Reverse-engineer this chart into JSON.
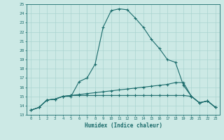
{
  "xlabel": "Humidex (Indice chaleur)",
  "bg_color": "#cce9e5",
  "line_color": "#1a6b6b",
  "grid_color": "#aad4d0",
  "xlim": [
    -0.5,
    23.5
  ],
  "ylim": [
    13,
    25
  ],
  "xticks": [
    0,
    1,
    2,
    3,
    4,
    5,
    6,
    7,
    8,
    9,
    10,
    11,
    12,
    13,
    14,
    15,
    16,
    17,
    18,
    19,
    20,
    21,
    22,
    23
  ],
  "yticks": [
    13,
    14,
    15,
    16,
    17,
    18,
    19,
    20,
    21,
    22,
    23,
    24,
    25
  ],
  "curve1_x": [
    0,
    1,
    2,
    3,
    4,
    5,
    6,
    7,
    8,
    9,
    10,
    11,
    12,
    13,
    14,
    15,
    16,
    17,
    18,
    19,
    20,
    21,
    22,
    23
  ],
  "curve1_y": [
    13.5,
    13.8,
    14.6,
    14.7,
    15.0,
    15.0,
    16.6,
    17.0,
    18.5,
    22.5,
    24.3,
    24.5,
    24.4,
    23.5,
    22.5,
    21.2,
    20.2,
    19.0,
    18.7,
    16.2,
    15.0,
    14.3,
    14.5,
    13.8
  ],
  "curve2_x": [
    0,
    1,
    2,
    3,
    4,
    5,
    6,
    7,
    8,
    9,
    10,
    11,
    12,
    13,
    14,
    15,
    16,
    17,
    18,
    19,
    20,
    21,
    22,
    23
  ],
  "curve2_y": [
    13.5,
    13.8,
    14.6,
    14.7,
    15.0,
    15.1,
    15.2,
    15.3,
    15.4,
    15.5,
    15.6,
    15.7,
    15.8,
    15.9,
    16.0,
    16.1,
    16.2,
    16.3,
    16.5,
    16.5,
    15.0,
    14.3,
    14.5,
    13.8
  ],
  "curve3_x": [
    0,
    1,
    2,
    3,
    4,
    5,
    6,
    7,
    8,
    9,
    10,
    11,
    12,
    13,
    14,
    15,
    16,
    17,
    18,
    19,
    20,
    21,
    22,
    23
  ],
  "curve3_y": [
    13.5,
    13.8,
    14.6,
    14.7,
    15.0,
    15.1,
    15.1,
    15.1,
    15.1,
    15.1,
    15.1,
    15.1,
    15.1,
    15.1,
    15.1,
    15.1,
    15.1,
    15.1,
    15.1,
    15.1,
    15.0,
    14.3,
    14.5,
    13.8
  ]
}
